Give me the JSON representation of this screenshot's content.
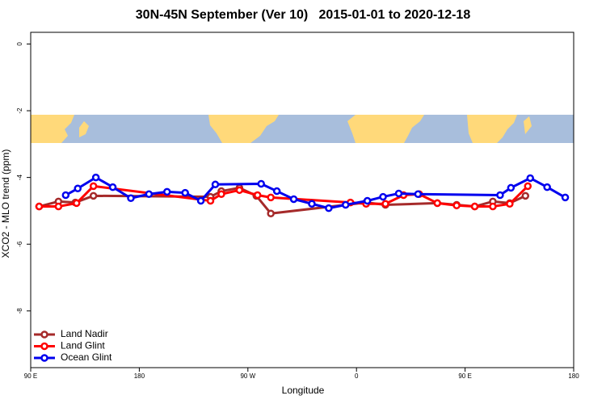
{
  "chart_data": {
    "type": "line",
    "title": "30N-45N September (Ver 10)   2015-01-01 to 2020-12-18",
    "x_label": "Longitude",
    "y_label": "XCO2 - MLO trend (ppm)",
    "xlim": [
      90,
      540
    ],
    "ylim": [
      -9.7,
      0.35
    ],
    "xticks": [
      {
        "value": 90,
        "label": "90 E"
      },
      180,
      {
        "value": 270,
        "label": "90 W"
      },
      {
        "value": 360,
        "label": "0"
      },
      {
        "value": 450,
        "label": "90 E"
      },
      {
        "value": 540,
        "label": "180"
      }
    ],
    "yticks": [
      0,
      -2,
      -4,
      -6,
      -8
    ],
    "legend": "bottom-left",
    "series": [
      {
        "name": "Land Nadir",
        "color": "#a52a2a",
        "x": [
          97,
          113,
          127,
          142,
          239,
          248,
          263,
          277,
          289,
          368,
          384,
          427,
          443,
          458,
          473,
          487,
          500
        ],
        "values": [
          -4.87,
          -4.72,
          -4.75,
          -4.55,
          -4.58,
          -4.41,
          -4.31,
          -4.55,
          -5.08,
          -4.75,
          -4.82,
          -4.77,
          -4.82,
          -4.87,
          -4.72,
          -4.77,
          -4.55
        ]
      },
      {
        "name": "Land Glint",
        "color": "#ff0000",
        "x": [
          97,
          113,
          128,
          142,
          239,
          248,
          263,
          278,
          289,
          355,
          368,
          384,
          399,
          412,
          427,
          443,
          458,
          473,
          487,
          502
        ],
        "values": [
          -4.87,
          -4.87,
          -4.77,
          -4.26,
          -4.7,
          -4.5,
          -4.38,
          -4.53,
          -4.6,
          -4.75,
          -4.79,
          -4.79,
          -4.53,
          -4.5,
          -4.77,
          -4.84,
          -4.87,
          -4.87,
          -4.79,
          -4.26
        ]
      },
      {
        "name": "Ocean Glint",
        "color": "#0000ee",
        "x": [
          119,
          129,
          144,
          158,
          173,
          188,
          203,
          218,
          231,
          243,
          281,
          294,
          308,
          323,
          337,
          351,
          369,
          382,
          395,
          411,
          479,
          488,
          504,
          518,
          533
        ],
        "values": [
          -4.53,
          -4.33,
          -4.0,
          -4.29,
          -4.62,
          -4.5,
          -4.43,
          -4.46,
          -4.7,
          -4.21,
          -4.19,
          -4.41,
          -4.65,
          -4.79,
          -4.92,
          -4.82,
          -4.7,
          -4.58,
          -4.48,
          -4.5,
          -4.53,
          -4.31,
          -4.02,
          -4.29,
          -4.6
        ]
      }
    ]
  }
}
